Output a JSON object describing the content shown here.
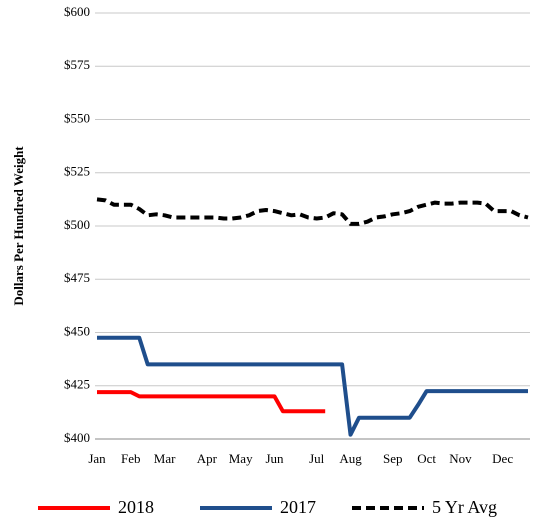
{
  "chart_data": {
    "type": "line",
    "y_label": "Dollars Per Hundred Weight",
    "categories": [
      "Jan",
      null,
      null,
      null,
      "Feb",
      null,
      null,
      null,
      "Mar",
      null,
      null,
      null,
      null,
      "Apr",
      null,
      null,
      null,
      "May",
      null,
      null,
      null,
      "Jun",
      null,
      null,
      null,
      null,
      "Jul",
      null,
      null,
      null,
      "Aug",
      null,
      null,
      null,
      null,
      "Sep",
      null,
      null,
      null,
      "Oct",
      null,
      null,
      null,
      "Nov",
      null,
      null,
      null,
      null,
      "Dec",
      null,
      null,
      null
    ],
    "series": [
      {
        "name": "2018",
        "color": "#ff0000",
        "dash": false,
        "values": [
          422,
          422,
          422,
          422,
          422,
          420,
          420,
          420,
          420,
          420,
          420,
          420,
          420,
          420,
          420,
          420,
          420,
          420,
          420,
          420,
          420,
          420,
          413,
          413,
          413,
          413,
          413,
          413,
          null,
          null,
          null,
          null,
          null,
          null,
          null,
          null,
          null,
          null,
          null,
          null,
          null,
          null,
          null,
          null,
          null,
          null,
          null,
          null,
          null,
          null,
          null,
          null
        ]
      },
      {
        "name": "2017",
        "color": "#1f4e8c",
        "dash": false,
        "values": [
          447.5,
          447.5,
          447.5,
          447.5,
          447.5,
          447.5,
          435,
          435,
          435,
          435,
          435,
          435,
          435,
          435,
          435,
          435,
          435,
          435,
          435,
          435,
          435,
          435,
          435,
          435,
          435,
          435,
          435,
          435,
          435,
          435,
          402,
          410,
          410,
          410,
          410,
          410,
          410,
          410,
          416,
          422.5,
          422.5,
          422.5,
          422.5,
          422.5,
          422.5,
          422.5,
          422.5,
          422.5,
          422.5,
          422.5,
          422.5,
          422.5
        ]
      },
      {
        "name": "5 Yr Avg",
        "color": "#000000",
        "dash": true,
        "values": [
          512.5,
          512,
          510,
          510,
          510,
          508,
          505,
          505.5,
          505,
          504,
          504,
          504,
          504,
          504,
          504,
          503.5,
          503.5,
          504,
          505,
          507,
          507.5,
          507,
          506,
          505,
          505.5,
          504,
          503.5,
          504,
          506,
          505.5,
          501,
          501,
          502,
          504,
          504.5,
          505.5,
          506,
          507,
          509,
          510,
          511,
          510.5,
          510.5,
          511,
          511,
          511,
          510.5,
          507,
          507,
          507,
          505,
          504
        ]
      }
    ],
    "ylim": [
      400,
      600
    ],
    "yticks": [
      {
        "value": 400,
        "label": "$400"
      },
      {
        "value": 425,
        "label": "$425"
      },
      {
        "value": 450,
        "label": "$450"
      },
      {
        "value": 475,
        "label": "$475"
      },
      {
        "value": 500,
        "label": "$500"
      },
      {
        "value": 525,
        "label": "$525"
      },
      {
        "value": 550,
        "label": "$550"
      },
      {
        "value": 575,
        "label": "$575"
      },
      {
        "value": 600,
        "label": "$600"
      }
    ],
    "grid": true,
    "legend": "bottom"
  }
}
